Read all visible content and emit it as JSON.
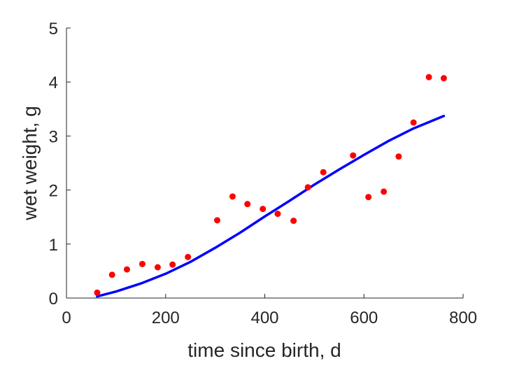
{
  "chart_data": {
    "type": "scatter",
    "title": "",
    "xlabel": "time since birth, d",
    "ylabel": "wet weight, g",
    "xlim": [
      0,
      800
    ],
    "ylim": [
      0,
      5
    ],
    "xticks": [
      0,
      200,
      400,
      600,
      800
    ],
    "yticks": [
      0,
      1,
      2,
      3,
      4,
      5
    ],
    "xtick_labels": [
      "0",
      "200",
      "400",
      "600",
      "800"
    ],
    "ytick_labels": [
      "0",
      "1",
      "2",
      "3",
      "4",
      "5"
    ],
    "grid": false,
    "legend": "none",
    "series": [
      {
        "kind": "points",
        "color": "#ff0000",
        "x": [
          62,
          92,
          122,
          153,
          184,
          214,
          245,
          304,
          335,
          365,
          396,
          426,
          458,
          487,
          518,
          578,
          609,
          640,
          670,
          700,
          731,
          761
        ],
        "y": [
          0.1,
          0.43,
          0.53,
          0.63,
          0.57,
          0.62,
          0.76,
          1.44,
          1.88,
          1.74,
          1.65,
          1.56,
          1.43,
          2.05,
          2.33,
          2.64,
          1.87,
          1.97,
          2.62,
          3.25,
          4.09,
          4.07
        ]
      },
      {
        "kind": "curve",
        "color": "#0000ff",
        "x": [
          62,
          100,
          150,
          200,
          250,
          300,
          350,
          400,
          450,
          500,
          550,
          600,
          650,
          700,
          761
        ],
        "y": [
          0.03,
          0.12,
          0.27,
          0.45,
          0.67,
          0.93,
          1.21,
          1.51,
          1.8,
          2.1,
          2.38,
          2.65,
          2.91,
          3.14,
          3.37
        ]
      }
    ]
  }
}
